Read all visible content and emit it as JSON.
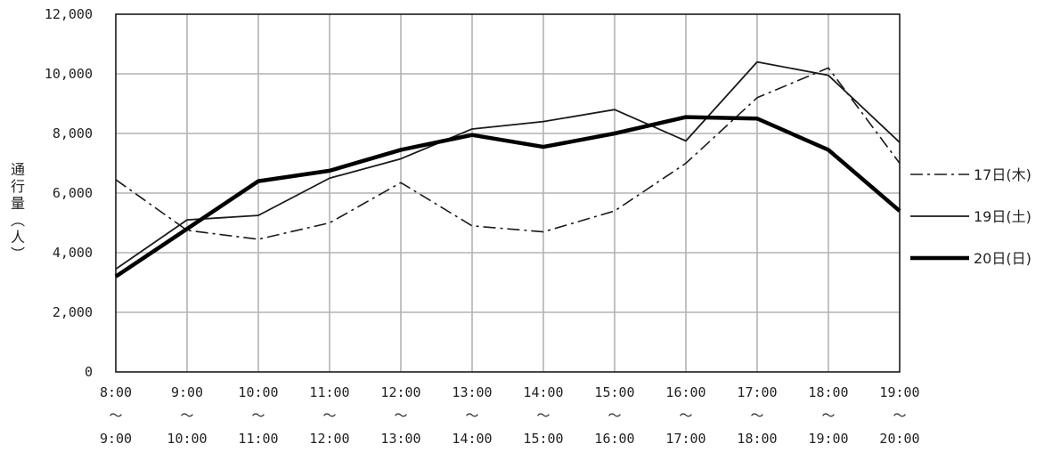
{
  "chart_data": {
    "type": "line",
    "ylabel": "通行量(人)",
    "ylim": [
      0,
      12000
    ],
    "yticks": [
      "0",
      "2,000",
      "4,000",
      "6,000",
      "8,000",
      "10,000",
      "12,000"
    ],
    "categories": [
      [
        "8:00",
        "～",
        "9:00"
      ],
      [
        "9:00",
        "～",
        "10:00"
      ],
      [
        "10:00",
        "～",
        "11:00"
      ],
      [
        "11:00",
        "～",
        "12:00"
      ],
      [
        "12:00",
        "～",
        "13:00"
      ],
      [
        "13:00",
        "～",
        "14:00"
      ],
      [
        "14:00",
        "～",
        "15:00"
      ],
      [
        "15:00",
        "～",
        "16:00"
      ],
      [
        "16:00",
        "～",
        "17:00"
      ],
      [
        "17:00",
        "～",
        "18:00"
      ],
      [
        "18:00",
        "～",
        "19:00"
      ],
      [
        "19:00",
        "～",
        "20:00"
      ]
    ],
    "grid": true,
    "legend_position": "right",
    "series": [
      {
        "name": "17日(木)",
        "style": "dash-dot",
        "color": "#1a1a1a",
        "values": [
          6450,
          4750,
          4450,
          5000,
          6350,
          4900,
          4700,
          5400,
          7000,
          9200,
          10200,
          7000
        ]
      },
      {
        "name": "19日(土)",
        "style": "thin",
        "color": "#1a1a1a",
        "values": [
          3450,
          5100,
          5250,
          6500,
          7150,
          8150,
          8400,
          8800,
          7750,
          10400,
          9950,
          7700
        ]
      },
      {
        "name": "20日(日)",
        "style": "thick",
        "color": "#000000",
        "values": [
          3200,
          4800,
          6400,
          6750,
          7450,
          7950,
          7550,
          8000,
          8550,
          8500,
          7450,
          5400
        ]
      }
    ]
  }
}
